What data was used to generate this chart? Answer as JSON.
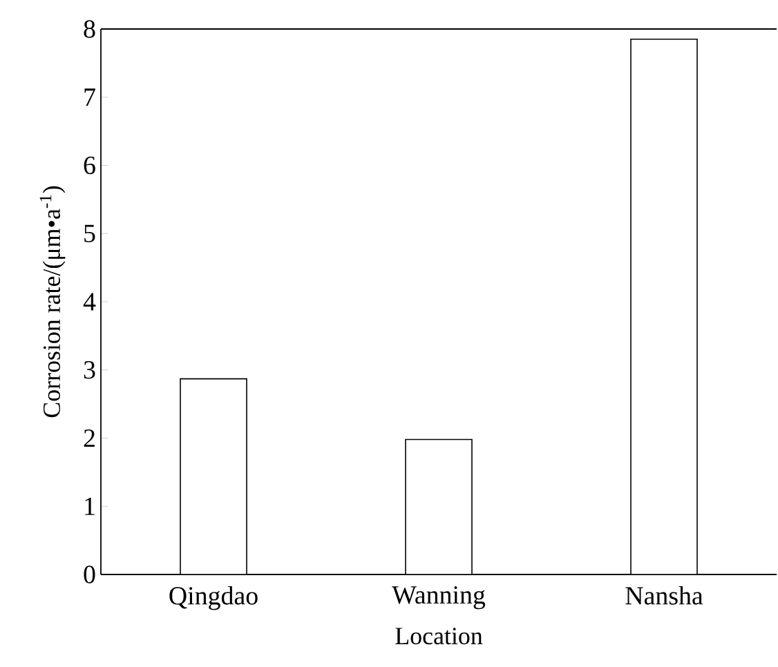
{
  "chart_data": {
    "type": "bar",
    "xlabel": "Location",
    "ylabel": "Corrosion rate/(μm•a$^{-1}$)",
    "categories": [
      "Qingdao",
      "Wanning",
      "Nansha"
    ],
    "values": [
      2.87,
      1.98,
      7.85
    ],
    "color": "#000000",
    "ylim": [
      0,
      8
    ],
    "yticks": [
      0,
      1,
      2,
      3,
      4,
      5,
      6,
      7,
      8
    ]
  }
}
